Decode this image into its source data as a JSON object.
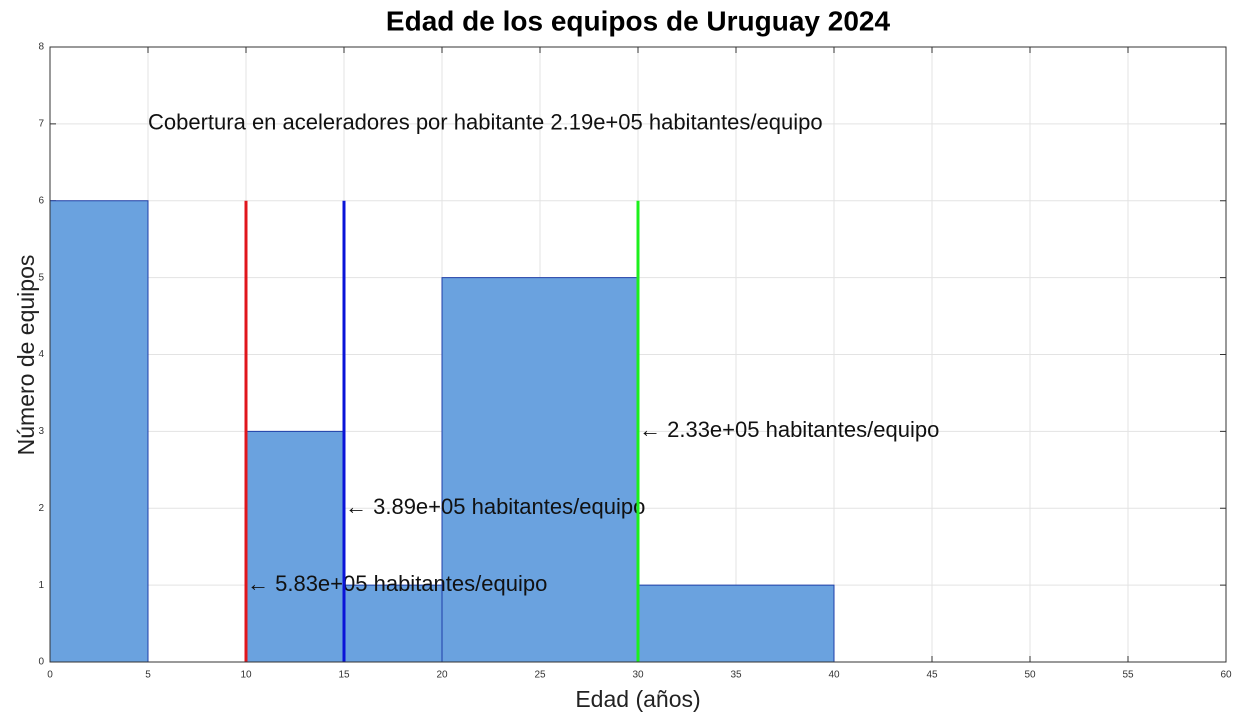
{
  "chart_data": {
    "type": "histogram",
    "title": "Edad de los equipos de Uruguay 2024",
    "xlabel": "Edad (años)",
    "ylabel": "Número de equipos",
    "bins": [
      0,
      5,
      10,
      15,
      20,
      30,
      40
    ],
    "counts": [
      6,
      0,
      3,
      1,
      5,
      1
    ],
    "color": "#6aa2df",
    "edge_color": "#1f3fa8",
    "xlim": [
      0,
      60
    ],
    "xticks": [
      0,
      5,
      10,
      15,
      20,
      25,
      30,
      35,
      40,
      45,
      50,
      55,
      60
    ],
    "ylim": [
      0,
      8
    ],
    "yticks": [
      0,
      1,
      2,
      3,
      4,
      5,
      6,
      7,
      8
    ],
    "grid": true,
    "annotation": {
      "text": "Cobertura en aceleradores por habitante 2.19e+05 habitantes/equipo",
      "x": 5,
      "y": 7
    },
    "lines": [
      {
        "x": 10,
        "height": 6,
        "color": "#e0161c",
        "label": "← 5.83e+05 habitantes/equipo",
        "label_y": 1
      },
      {
        "x": 15,
        "height": 6,
        "color": "#0a14d8",
        "label": "← 3.89e+05 habitantes/equipo",
        "label_y": 2
      },
      {
        "x": 30,
        "height": 6,
        "color": "#1cf01c",
        "label": "← 2.33e+05 habitantes/equipo",
        "label_y": 3
      }
    ]
  }
}
